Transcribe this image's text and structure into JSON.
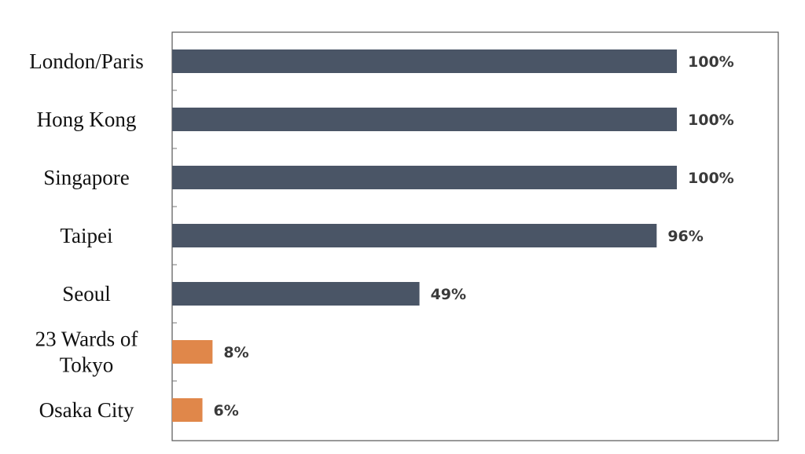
{
  "chart_data": {
    "type": "bar",
    "orientation": "horizontal",
    "categories": [
      [
        "London/Paris"
      ],
      [
        "Hong Kong"
      ],
      [
        "Singapore"
      ],
      [
        "Taipei"
      ],
      [
        "Seoul"
      ],
      [
        "23 Wards of",
        "Tokyo"
      ],
      [
        "Osaka City"
      ]
    ],
    "values": [
      100,
      100,
      100,
      96,
      49,
      8,
      6
    ],
    "value_labels": [
      "100%",
      "100%",
      "100%",
      "96%",
      "49%",
      "8%",
      "6%"
    ],
    "bar_colors": [
      "#4a5566",
      "#4a5566",
      "#4a5566",
      "#4a5566",
      "#4a5566",
      "#e0874a",
      "#e0874a"
    ],
    "xlim": [
      0,
      100
    ],
    "grid": false,
    "legend": "none",
    "title": "",
    "xlabel": "",
    "ylabel": ""
  }
}
